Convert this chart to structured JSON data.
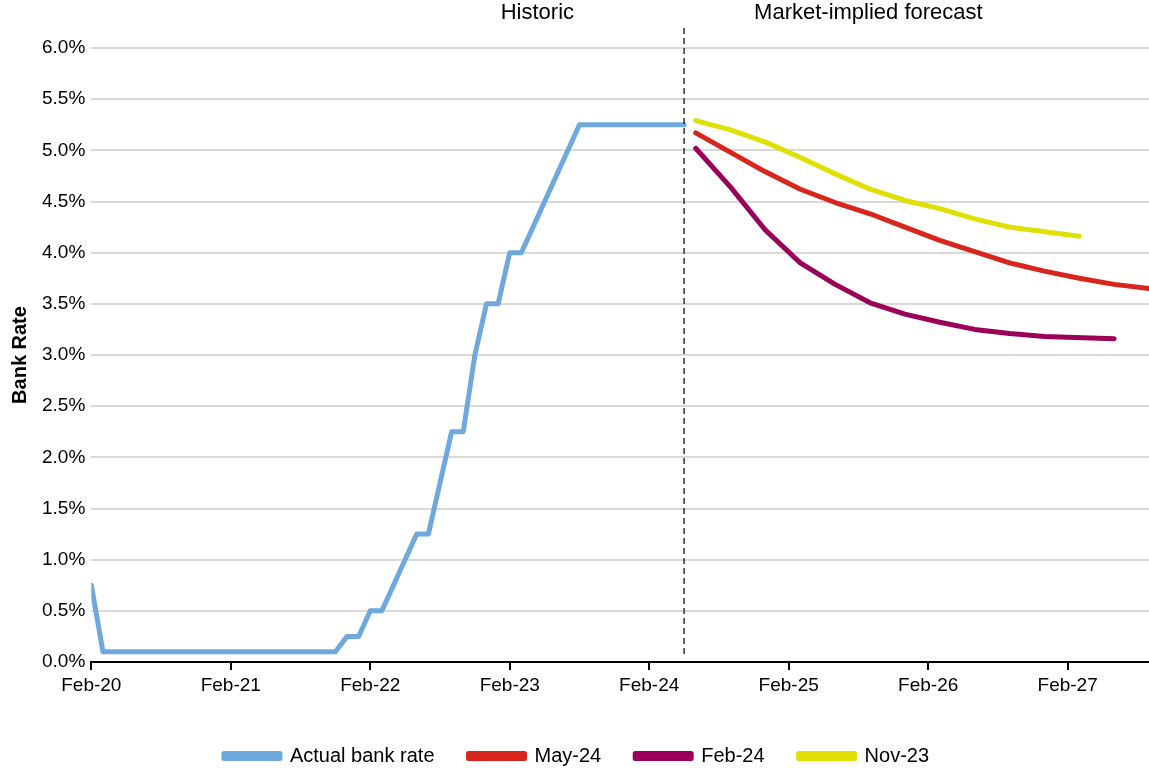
{
  "chart_data": {
    "type": "line",
    "ylabel": "Bank Rate",
    "annotations": [
      "Historic",
      "Market-implied forecast"
    ],
    "xlim": [
      "2020-02",
      "2027-09"
    ],
    "xticks": [
      {
        "value": "2020-02",
        "label": "Feb-20"
      },
      {
        "value": "2021-02",
        "label": "Feb-21"
      },
      {
        "value": "2022-02",
        "label": "Feb-22"
      },
      {
        "value": "2023-02",
        "label": "Feb-23"
      },
      {
        "value": "2024-02",
        "label": "Feb-24"
      },
      {
        "value": "2025-02",
        "label": "Feb-25"
      },
      {
        "value": "2026-02",
        "label": "Feb-26"
      },
      {
        "value": "2027-02",
        "label": "Feb-27"
      }
    ],
    "ylim": [
      0,
      6
    ],
    "yticks": [
      {
        "value": 0,
        "label": "0.0%"
      },
      {
        "value": 0.5,
        "label": "0.5%"
      },
      {
        "value": 1,
        "label": "1.0%"
      },
      {
        "value": 1.5,
        "label": "1.5%"
      },
      {
        "value": 2,
        "label": "2.0%"
      },
      {
        "value": 2.5,
        "label": "2.5%"
      },
      {
        "value": 3,
        "label": "3.0%"
      },
      {
        "value": 3.5,
        "label": "3.5%"
      },
      {
        "value": 4,
        "label": "4.0%"
      },
      {
        "value": 4.5,
        "label": "4.5%"
      },
      {
        "value": 5,
        "label": "5.0%"
      },
      {
        "value": 5.5,
        "label": "5.5%"
      },
      {
        "value": 6,
        "label": "6.0%"
      }
    ],
    "grid": "y",
    "legend": "bottom",
    "marker": "none",
    "line_style": "solid",
    "ref_lines": [
      {
        "axis": "x",
        "value": "2024-05",
        "color": "#000000",
        "line_style": "dashed"
      }
    ],
    "series": [
      {
        "name": "Actual bank rate",
        "color": "#6fa8dc",
        "x": [
          "2020-02",
          "2020-03",
          "2021-11",
          "2021-12",
          "2022-01",
          "2022-02",
          "2022-03",
          "2022-06",
          "2022-07",
          "2022-09",
          "2022-10",
          "2022-11",
          "2022-12",
          "2023-01",
          "2023-02",
          "2023-03",
          "2023-08",
          "2024-05"
        ],
        "values": [
          0.75,
          0.1,
          0.1,
          0.25,
          0.25,
          0.5,
          0.5,
          1.25,
          1.25,
          2.25,
          2.25,
          3.0,
          3.5,
          3.5,
          4.0,
          4.0,
          5.25,
          5.25
        ]
      },
      {
        "name": "May-24",
        "color": "#d9261c",
        "x": [
          "2024-06",
          "2024-09",
          "2024-12",
          "2025-03",
          "2025-06",
          "2025-09",
          "2025-12",
          "2026-03",
          "2026-06",
          "2026-09",
          "2026-12",
          "2027-03",
          "2027-06",
          "2027-09"
        ],
        "values": [
          5.17,
          4.98,
          4.79,
          4.62,
          4.49,
          4.38,
          4.25,
          4.12,
          4.01,
          3.9,
          3.82,
          3.75,
          3.69,
          3.65
        ]
      },
      {
        "name": "Feb-24",
        "color": "#9b0058",
        "x": [
          "2024-06",
          "2024-09",
          "2024-12",
          "2025-03",
          "2025-06",
          "2025-09",
          "2025-12",
          "2026-03",
          "2026-06",
          "2026-09",
          "2026-12",
          "2027-06"
        ],
        "values": [
          5.02,
          4.64,
          4.22,
          3.9,
          3.69,
          3.51,
          3.4,
          3.32,
          3.25,
          3.21,
          3.18,
          3.16
        ]
      },
      {
        "name": "Nov-23",
        "color": "#dfe000",
        "x": [
          "2024-06",
          "2024-09",
          "2024-12",
          "2025-03",
          "2025-06",
          "2025-09",
          "2025-12",
          "2026-03",
          "2026-06",
          "2026-09",
          "2027-03"
        ],
        "values": [
          5.29,
          5.2,
          5.08,
          4.93,
          4.77,
          4.62,
          4.51,
          4.43,
          4.33,
          4.25,
          4.16
        ]
      }
    ]
  }
}
